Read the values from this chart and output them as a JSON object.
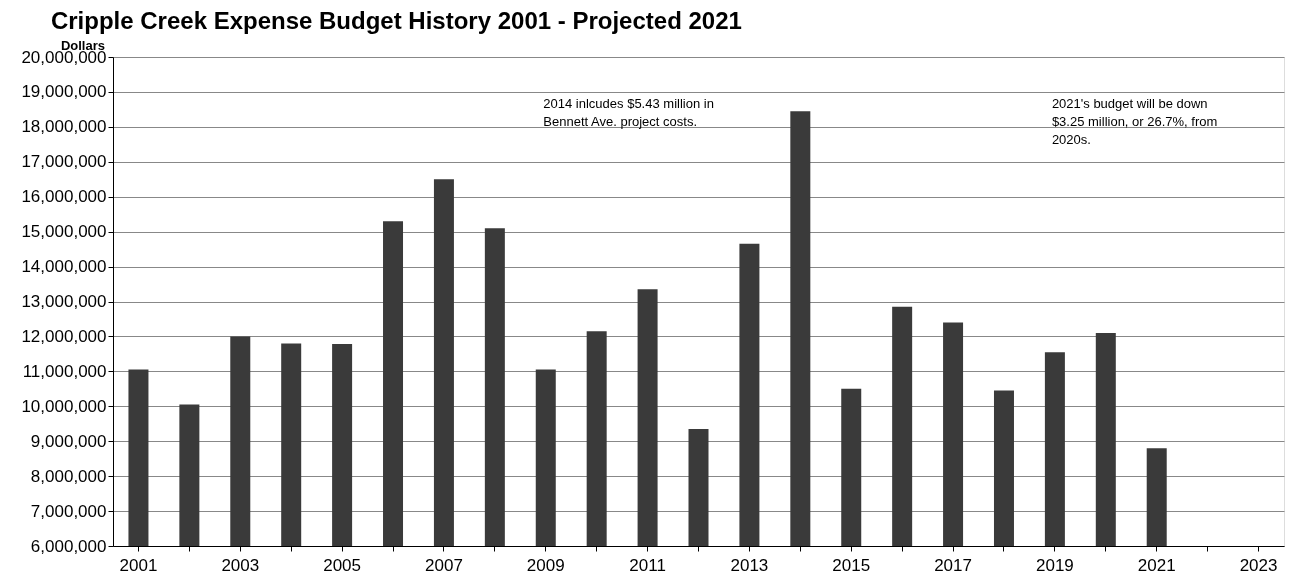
{
  "chart_data": {
    "type": "bar",
    "title": "Cripple Creek Expense Budget History 2001 - Projected 2021",
    "ylabel": "Dollars",
    "categories": [
      "2001",
      null,
      "2003",
      null,
      "2005",
      null,
      "2007",
      null,
      "2009",
      null,
      "2011",
      null,
      "2013",
      null,
      "2015",
      null,
      "2017",
      null,
      "2019",
      null,
      "2021",
      null,
      "2023"
    ],
    "values": [
      11050000,
      10050000,
      12000000,
      11800000,
      11780000,
      15300000,
      16500000,
      15100000,
      11050000,
      12150000,
      13350000,
      9350000,
      14650000,
      18450000,
      10500000,
      12850000,
      12400000,
      10450000,
      11550000,
      12100000,
      8800000,
      null,
      null
    ],
    "color": "#3a3a3a",
    "ylim": [
      6000000,
      20000000
    ],
    "yticks": [
      {
        "value": 6000000,
        "label": "6,000,000"
      },
      {
        "value": 7000000,
        "label": "7,000,000"
      },
      {
        "value": 8000000,
        "label": "8,000,000"
      },
      {
        "value": 9000000,
        "label": "9,000,000"
      },
      {
        "value": 10000000,
        "label": "10,000,000"
      },
      {
        "value": 11000000,
        "label": "11,000,000"
      },
      {
        "value": 12000000,
        "label": "12,000,000"
      },
      {
        "value": 13000000,
        "label": "13,000,000"
      },
      {
        "value": 14000000,
        "label": "14,000,000"
      },
      {
        "value": 15000000,
        "label": "15,000,000"
      },
      {
        "value": 16000000,
        "label": "16,000,000"
      },
      {
        "value": 17000000,
        "label": "17,000,000"
      },
      {
        "value": 18000000,
        "label": "18,000,000"
      },
      {
        "value": 19000000,
        "label": "19,000,000"
      },
      {
        "value": 20000000,
        "label": "20,000,000"
      }
    ],
    "grid": "y",
    "annotations": [
      "2014 inlcudes $5.43 million in Bennett Ave. project costs.",
      "2021's budget will be down $3.25 million, or 26.7%, from 2020s."
    ]
  }
}
